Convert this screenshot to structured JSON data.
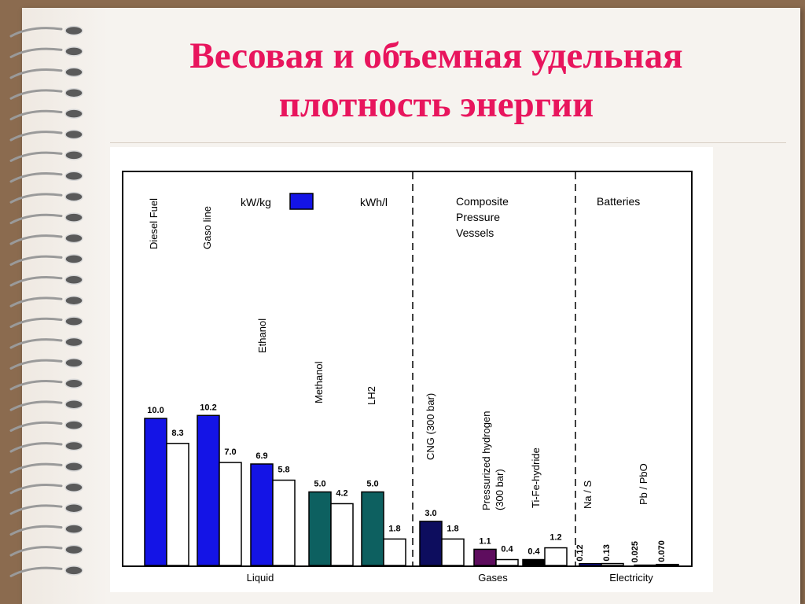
{
  "slide": {
    "title_line1": "Весовая и объемная удельная",
    "title_line2": "плотность энергии"
  },
  "colors": {
    "title": "#e8155d",
    "kwkg_liquid": "#1414e6",
    "methanol_lh2": "#0d6060",
    "cng": "#0d0d5e",
    "pressurized_h2": "#5e0d5e",
    "tife": "#000000",
    "batteries": "#1414e6",
    "kwhl": "#ffffff"
  },
  "chart_data": {
    "type": "bar",
    "ylim": [
      0,
      12
    ],
    "legend": [
      {
        "label": "kW/kg",
        "color": "#1414e6"
      },
      {
        "label": "kWh/l",
        "color": "#ffffff"
      }
    ],
    "section_labels": [
      "Composite\nPressure\nVessels",
      "Batteries"
    ],
    "group_labels": [
      "Liquid",
      "Gases",
      "Electricity"
    ],
    "categories": [
      {
        "name": "Diesel Fuel",
        "kwkg": 10.0,
        "kwkg_label": "10.0",
        "kwhl": 8.3,
        "kwhl_label": "8.3",
        "color": "#1414e6"
      },
      {
        "name": "Gaso line",
        "kwkg": 10.2,
        "kwkg_label": "10.2",
        "kwhl": 7.0,
        "kwhl_label": "7.0",
        "color": "#1414e6"
      },
      {
        "name": "Ethanol",
        "kwkg": 6.9,
        "kwkg_label": "6.9",
        "kwhl": 5.8,
        "kwhl_label": "5.8",
        "color": "#1414e6"
      },
      {
        "name": "Methanol",
        "kwkg": 5.0,
        "kwkg_label": "5.0",
        "kwhl": 4.2,
        "kwhl_label": "4.2",
        "color": "#0d6060"
      },
      {
        "name": "LH2",
        "kwkg": 5.0,
        "kwkg_label": "5.0",
        "kwhl": 1.8,
        "kwhl_label": "1.8",
        "color": "#0d6060"
      },
      {
        "name": "CNG (300 bar)",
        "kwkg": 3.0,
        "kwkg_label": "3.0",
        "kwhl": 1.8,
        "kwhl_label": "1.8",
        "color": "#0d0d5e"
      },
      {
        "name": "Pressurized hydrogen (300 bar)",
        "kwkg": 1.1,
        "kwkg_label": "1.1",
        "kwhl": 0.4,
        "kwhl_label": "0.4",
        "color": "#5e0d5e"
      },
      {
        "name": "Ti-Fe-hydride",
        "kwkg": 0.4,
        "kwkg_label": "0.4",
        "kwhl": 1.2,
        "kwhl_label": "1.2",
        "color": "#000000"
      },
      {
        "name": "Na / S",
        "kwkg": 0.12,
        "kwkg_label": "0.12",
        "kwhl": 0.13,
        "kwhl_label": "0.13",
        "color": "#1414e6"
      },
      {
        "name": "Pb / PbO",
        "kwkg": 0.025,
        "kwkg_label": "0.025",
        "kwhl": 0.07,
        "kwhl_label": "0.070",
        "color": "#1414e6"
      }
    ]
  }
}
